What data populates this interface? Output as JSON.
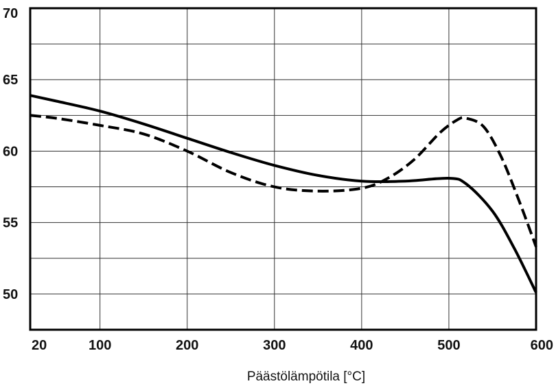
{
  "chart_data": {
    "type": "line",
    "title": "",
    "xlabel": "Päästölämpötila [°C]",
    "ylabel": "",
    "xlim": [
      20,
      600
    ],
    "ylim": [
      47.5,
      70
    ],
    "grid": true,
    "legend": "none",
    "x_ticks": [
      20,
      100,
      200,
      300,
      400,
      500,
      600
    ],
    "x_tick_labels": [
      "20",
      "100",
      "200",
      "300",
      "400",
      "500",
      "600"
    ],
    "x_grid": [
      100,
      200,
      300,
      400,
      500
    ],
    "y_ticks": [
      50,
      55,
      60,
      65,
      70
    ],
    "y_tick_labels": [
      "50",
      "55",
      "60",
      "65",
      "70"
    ],
    "y_grid": [
      50,
      52.5,
      55,
      57.5,
      60,
      62.5,
      65,
      67.5
    ],
    "series": [
      {
        "style": "solid",
        "color": "#000000",
        "x": [
          20,
          50,
          100,
          150,
          200,
          250,
          300,
          350,
          400,
          450,
          500,
          520,
          550,
          575,
          600
        ],
        "y": [
          63.9,
          63.5,
          62.8,
          61.9,
          60.9,
          59.9,
          59.0,
          58.3,
          57.9,
          57.9,
          58.1,
          57.7,
          55.8,
          53.2,
          50.1
        ]
      },
      {
        "style": "dashed",
        "color": "#000000",
        "x": [
          20,
          50,
          100,
          150,
          200,
          250,
          300,
          350,
          400,
          430,
          460,
          490,
          510,
          520,
          540,
          560,
          580,
          600
        ],
        "y": [
          62.5,
          62.3,
          61.8,
          61.2,
          60.0,
          58.5,
          57.5,
          57.2,
          57.4,
          58.1,
          59.4,
          61.3,
          62.2,
          62.3,
          61.7,
          59.6,
          56.6,
          53.3
        ]
      }
    ]
  }
}
